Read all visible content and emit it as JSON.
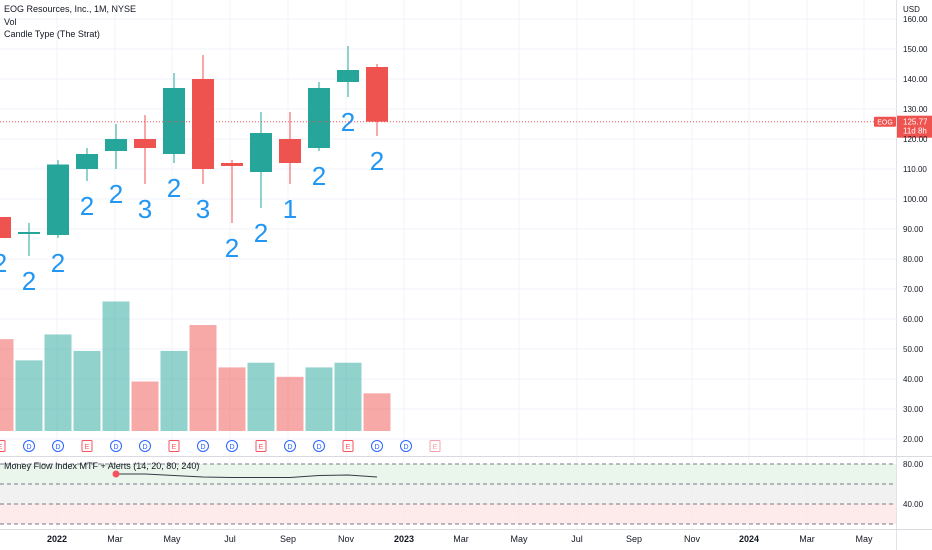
{
  "legend": {
    "main": "EOG Resources, Inc., 1M, NYSE",
    "vol": "Vol",
    "strat": "Candle Type (The Strat)"
  },
  "price_axis": {
    "currency": "USD",
    "ticks": [
      "160.00",
      "150.00",
      "140.00",
      "130.00",
      "120.00",
      "110.00",
      "100.00",
      "90.00",
      "80.00",
      "70.00",
      "60.00",
      "50.00",
      "40.00",
      "30.00",
      "20.00"
    ]
  },
  "last_price": {
    "symbol": "EOG",
    "price": "125.77",
    "countdown": "11d 8h",
    "color": "#ef5350"
  },
  "mfi": {
    "title": "Money Flow Index MTF + Alerts (14, 20, 80, 240)",
    "ticks": [
      "80.00",
      "40.00"
    ],
    "line_color": "#363a45"
  },
  "time_axis": [
    "2022",
    "Mar",
    "May",
    "Jul",
    "Sep",
    "Nov",
    "2023",
    "Mar",
    "May",
    "Jul",
    "Sep",
    "Nov",
    "2024",
    "Mar",
    "May"
  ],
  "colors": {
    "up": "#26a69a",
    "down": "#ef5350",
    "strat_number": "#2196f3"
  },
  "chart_data": {
    "type": "candlestick",
    "interval": "1M",
    "ylim": [
      15,
      165
    ],
    "candles": [
      {
        "o": 94,
        "h": 94,
        "l": 87,
        "c": 87,
        "vol": 44.5,
        "strat": "2",
        "event": "E"
      },
      {
        "o": 89,
        "h": 92,
        "l": 81,
        "c": 89,
        "vol": 40,
        "strat": "2",
        "event": "D"
      },
      {
        "o": 88,
        "h": 113,
        "l": 87,
        "c": 111.5,
        "vol": 45.5,
        "strat": "2",
        "event": "D"
      },
      {
        "o": 110,
        "h": 117,
        "l": 106,
        "c": 115,
        "vol": 42,
        "strat": "2",
        "event": "E"
      },
      {
        "o": 116,
        "h": 125,
        "l": 110,
        "c": 120,
        "vol": 52.5,
        "strat": "2",
        "event": "D"
      },
      {
        "o": 120,
        "h": 128,
        "l": 105,
        "c": 117,
        "vol": 35.5,
        "strat": "3",
        "event": "D"
      },
      {
        "o": 115,
        "h": 142,
        "l": 112,
        "c": 137,
        "vol": 42,
        "strat": "2",
        "event": "E"
      },
      {
        "o": 140,
        "h": 148,
        "l": 105,
        "c": 110,
        "vol": 47.5,
        "strat": "3",
        "event": "D"
      },
      {
        "o": 112,
        "h": 113,
        "l": 92,
        "c": 111,
        "vol": 38.5,
        "strat": "2",
        "event": "D"
      },
      {
        "o": 109,
        "h": 129,
        "l": 97,
        "c": 122,
        "vol": 39.5,
        "strat": "2",
        "event": "E"
      },
      {
        "o": 120,
        "h": 129,
        "l": 105,
        "c": 112,
        "vol": 36.5,
        "strat": "1",
        "event": "D"
      },
      {
        "o": 117,
        "h": 139,
        "l": 116,
        "c": 137,
        "vol": 38.5,
        "strat": "2",
        "event": "D"
      },
      {
        "o": 139,
        "h": 151,
        "l": 134,
        "c": 143,
        "vol": 39.5,
        "strat": "2",
        "event": "E"
      },
      {
        "o": 144,
        "h": 145,
        "l": 121,
        "c": 125.77,
        "vol": 33,
        "strat": "2",
        "event": "D"
      }
    ],
    "upcoming_events": [
      "D",
      "E"
    ],
    "mfi_values": [
      70,
      70,
      68.5,
      67,
      66.5,
      66.5,
      66.5,
      68.5,
      69,
      67
    ]
  }
}
